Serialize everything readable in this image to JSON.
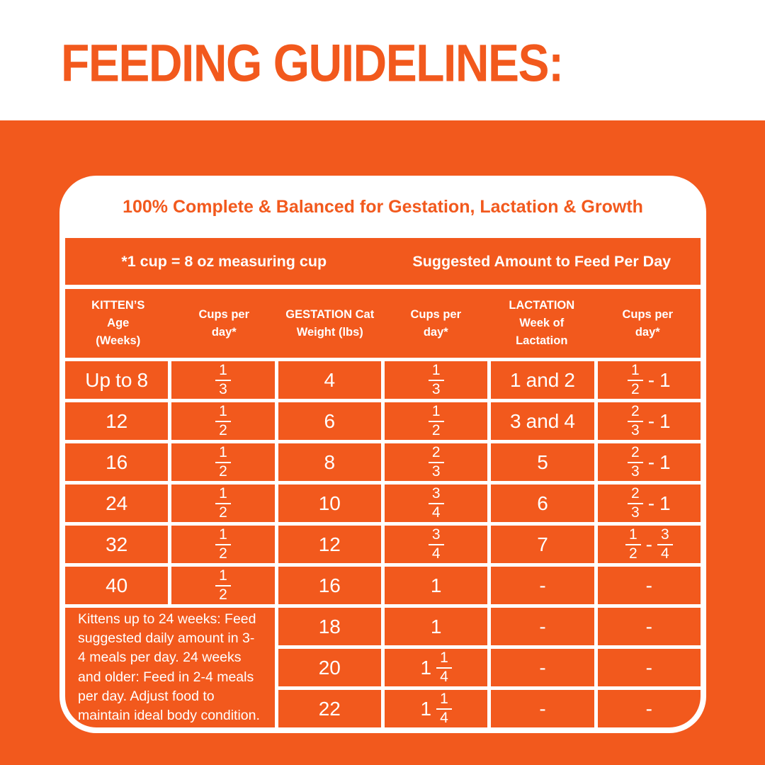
{
  "colors": {
    "orange": "#F2591D",
    "white": "#FFFFFF"
  },
  "title": "FEEDING GUIDELINES:",
  "card": {
    "header": "100% Complete & Balanced for Gestation, Lactation & Growth",
    "subheader": {
      "left": "*1 cup = 8 oz measuring cup",
      "right": "Suggested Amount to Feed Per Day"
    },
    "table": {
      "columns": [
        {
          "lines": [
            "KITTEN’S",
            "Age",
            "(Weeks)"
          ]
        },
        {
          "lines": [
            "Cups per",
            "day*"
          ]
        },
        {
          "lines": [
            "GESTATION Cat",
            "Weight (lbs)"
          ]
        },
        {
          "lines": [
            "Cups per",
            "day*"
          ]
        },
        {
          "lines": [
            "LACTATION",
            "Week of",
            "Lactation"
          ]
        },
        {
          "lines": [
            "Cups per",
            "day*"
          ]
        }
      ],
      "rows": [
        [
          "Up to 8",
          "1/3",
          "4",
          "1/3",
          "1 and 2",
          "1/2 - 1"
        ],
        [
          "12",
          "1/2",
          "6",
          "1/2",
          "3 and 4",
          "2/3 - 1"
        ],
        [
          "16",
          "1/2",
          "8",
          "2/3",
          "5",
          "2/3 - 1"
        ],
        [
          "24",
          "1/2",
          "10",
          "3/4",
          "6",
          "2/3 - 1"
        ],
        [
          "32",
          "1/2",
          "12",
          "3/4",
          "7",
          "1/2 - 3/4"
        ],
        [
          "40",
          "1/2",
          "16",
          "1",
          "-",
          "-"
        ],
        [
          null,
          null,
          "18",
          "1",
          "-",
          "-"
        ],
        [
          null,
          null,
          "20",
          "1 1/4",
          "-",
          "-"
        ],
        [
          null,
          null,
          "22",
          "1 1/4",
          "-",
          "-"
        ]
      ],
      "note": "Kittens up to 24 weeks: Feed suggested daily amount in 3-4 meals per day. 24 weeks and older: Feed in 2-4 meals per day. Adjust food to maintain ideal body condition."
    }
  }
}
